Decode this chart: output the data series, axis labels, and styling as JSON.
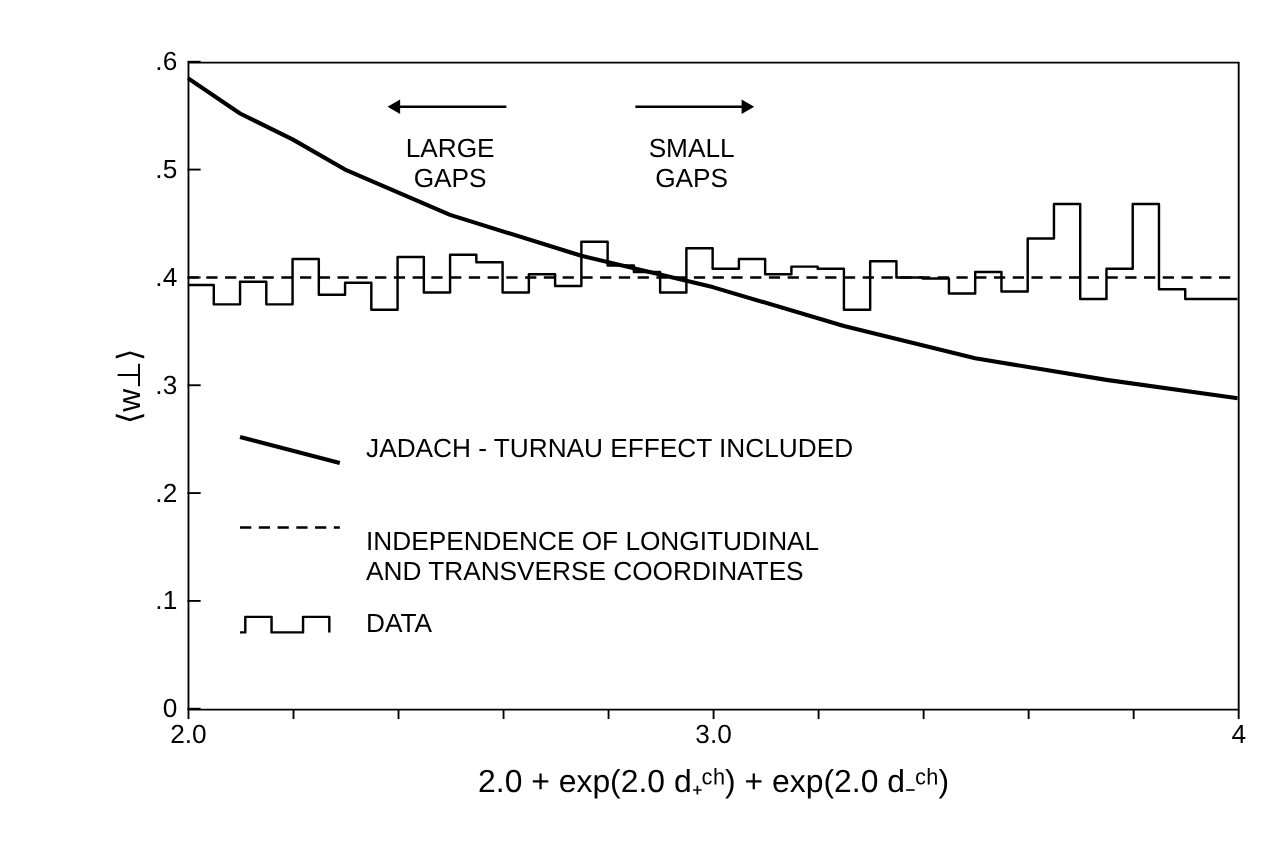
{
  "chart_data": {
    "type": "line",
    "xlabel": "2.0 + exp(2.0 d₊ᶜʰ) + exp(2.0 d₋ᶜʰ)",
    "ylabel": "⟨w⊥⟩",
    "xlim": [
      2.0,
      4.0
    ],
    "xticks": [
      {
        "value": 2.0,
        "label": "2.0"
      },
      {
        "value": 2.2,
        "label": null
      },
      {
        "value": 2.4,
        "label": null
      },
      {
        "value": 2.6,
        "label": null
      },
      {
        "value": 2.8,
        "label": null
      },
      {
        "value": 3.0,
        "label": "3.0"
      },
      {
        "value": 3.2,
        "label": null
      },
      {
        "value": 3.4,
        "label": null
      },
      {
        "value": 3.6,
        "label": null
      },
      {
        "value": 3.8,
        "label": null
      },
      {
        "value": 4.0,
        "label": "4"
      }
    ],
    "ylim": [
      0,
      0.6
    ],
    "yticks": [
      0,
      {
        "value": 0.1,
        "label": ".1"
      },
      {
        "value": 0.2,
        "label": ".2"
      },
      {
        "value": 0.3,
        "label": ".3"
      },
      {
        "value": 0.4,
        "label": ".4"
      },
      {
        "value": 0.5,
        "label": ".5"
      },
      {
        "value": 0.6,
        "label": ".6"
      }
    ],
    "grid": false,
    "legend": "bottom left",
    "annotations": [
      "LARGE GAPS",
      "SMALL GAPS"
    ],
    "series": [
      {
        "name": "JADACH - TURNAU EFFECT INCLUDED",
        "type": "line",
        "color": "#000000",
        "line_style": "solid",
        "x": [
          2.0,
          2.1,
          2.2,
          2.3,
          2.5,
          2.75,
          3.0,
          3.25,
          3.5,
          3.75,
          4.0
        ],
        "values": [
          0.585,
          0.552,
          0.528,
          0.5,
          0.458,
          0.42,
          0.391,
          0.355,
          0.325,
          0.305,
          0.288
        ]
      },
      {
        "name": "INDEPENDENCE OF LONGITUDINAL AND TRANSVERSE COORDINATES",
        "type": "line",
        "color": "#000000",
        "line_style": "dashed",
        "x": [
          2.0,
          4.0
        ],
        "values": [
          0.4,
          0.4
        ]
      },
      {
        "name": "DATA",
        "type": "histogram",
        "color": "#000000",
        "line_style": "solid",
        "bins": [
          2.0,
          2.05,
          2.1,
          2.15,
          2.2,
          2.25,
          2.3,
          2.35,
          2.4,
          2.45,
          2.5,
          2.55,
          2.6,
          2.65,
          2.7,
          2.75,
          2.8,
          2.85,
          2.9,
          2.95,
          3.0,
          3.05,
          3.1,
          3.15,
          3.2,
          3.25,
          3.3,
          3.35,
          3.4,
          3.45,
          3.5,
          3.55,
          3.6,
          3.65,
          3.7,
          3.75,
          3.8,
          3.85,
          3.9,
          3.95,
          4.0
        ],
        "values": [
          0.393,
          0.375,
          0.396,
          0.375,
          0.417,
          0.384,
          0.395,
          0.37,
          0.419,
          0.386,
          0.421,
          0.414,
          0.386,
          0.403,
          0.392,
          0.433,
          0.411,
          0.405,
          0.386,
          0.427,
          0.408,
          0.417,
          0.403,
          0.41,
          0.408,
          0.37,
          0.415,
          0.4,
          0.399,
          0.385,
          0.405,
          0.387,
          0.436,
          0.468,
          0.38,
          0.408,
          0.468,
          0.389,
          0.38,
          0.38
        ]
      }
    ]
  }
}
